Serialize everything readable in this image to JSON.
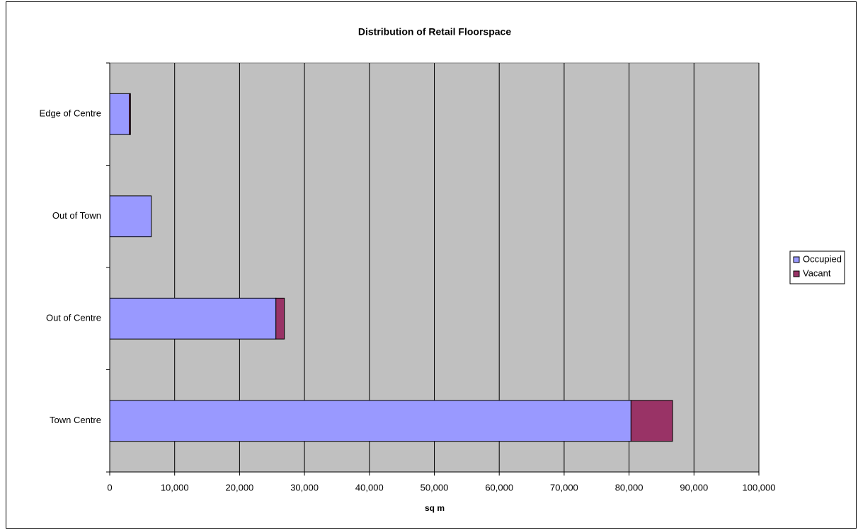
{
  "chart_data": {
    "type": "stacked-horizontal-bar",
    "title": "Distribution of Retail Floorspace",
    "x_label": "sq m",
    "categories": [
      "Town Centre",
      "Out of Centre",
      "Out of Town",
      "Edge of Centre"
    ],
    "series": [
      {
        "name": "Occupied",
        "color": "#9999ff",
        "values": [
          80300,
          25600,
          6400,
          3000
        ]
      },
      {
        "name": "Vacant",
        "color": "#993366",
        "values": [
          6400,
          1300,
          0,
          200
        ]
      }
    ],
    "xlim": [
      0,
      100000
    ],
    "xticks": [
      0,
      {
        "value": 10000,
        "label": "10,000"
      },
      {
        "value": 20000,
        "label": "20,000"
      },
      {
        "value": 30000,
        "label": "30,000"
      },
      {
        "value": 40000,
        "label": "40,000"
      },
      {
        "value": 50000,
        "label": "50,000"
      },
      {
        "value": 60000,
        "label": "60,000"
      },
      {
        "value": 70000,
        "label": "70,000"
      },
      {
        "value": 80000,
        "label": "80,000"
      },
      {
        "value": 90000,
        "label": "90,000"
      },
      {
        "value": 100000,
        "label": "100,000"
      }
    ],
    "grid": true,
    "legend": "right",
    "plot_background": "#c0c0c0"
  }
}
